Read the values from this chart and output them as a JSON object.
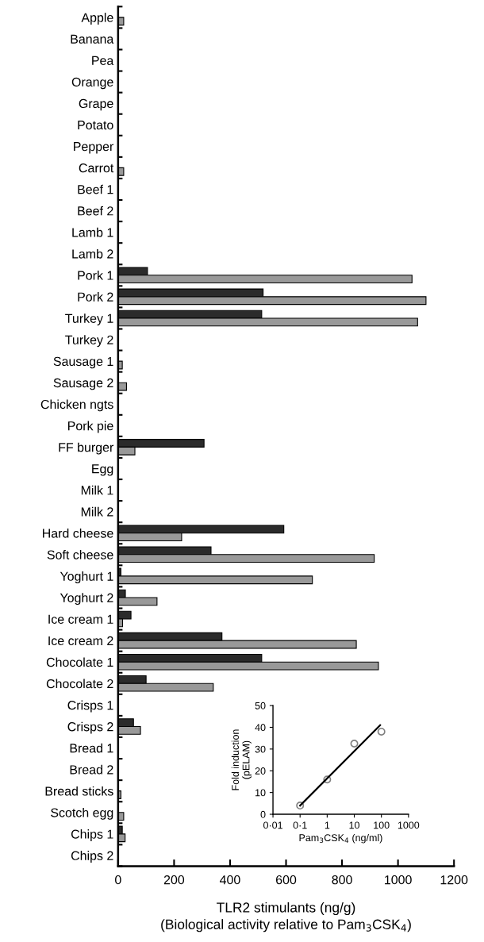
{
  "chart_data": [
    {
      "type": "bar",
      "orientation": "horizontal",
      "xlabel": "TLR2 stimulants (ng/g)\n(Biological activity relative to Pam$_{3}$CSK$_{4}$)",
      "categories": [
        "Apple",
        "Banana",
        "Pea",
        "Orange",
        "Grape",
        "Potato",
        "Pepper",
        "Carrot",
        "Beef 1",
        "Beef 2",
        "Lamb 1",
        "Lamb 2",
        "Pork 1",
        "Pork 2",
        "Turkey 1",
        "Turkey 2",
        "Sausage 1",
        "Sausage 2",
        "Chicken ngts",
        "Pork pie",
        "FF burger",
        "Egg",
        "Milk 1",
        "Milk 2",
        "Hard cheese",
        "Soft cheese",
        "Yoghurt 1",
        "Yoghurt 2",
        "Ice cream 1",
        "Ice cream 2",
        "Chocolate 1",
        "Chocolate 2",
        "Crisps 1",
        "Crisps 2",
        "Bread 1",
        "Bread 2",
        "Bread sticks",
        "Scotch egg",
        "Chips 1",
        "Chips 2"
      ],
      "series": [
        {
          "color": "#2b2b2b",
          "values": [
            null,
            null,
            null,
            null,
            null,
            null,
            null,
            null,
            null,
            null,
            null,
            null,
            105,
            518,
            513,
            null,
            null,
            null,
            null,
            null,
            307,
            null,
            null,
            null,
            592,
            332,
            10,
            26,
            46,
            371,
            513,
            100,
            null,
            55,
            null,
            null,
            null,
            null,
            15,
            null
          ]
        },
        {
          "color": "#999999",
          "values": [
            20,
            null,
            null,
            null,
            null,
            null,
            null,
            20,
            null,
            null,
            null,
            null,
            1050,
            1100,
            1070,
            null,
            15,
            30,
            null,
            null,
            60,
            null,
            null,
            null,
            227,
            915,
            694,
            139,
            16,
            851,
            930,
            340,
            null,
            80,
            null,
            null,
            10,
            20,
            25,
            null
          ]
        }
      ],
      "xlim": [
        0,
        1200
      ],
      "xticks": [
        0,
        200,
        400,
        600,
        800,
        1000,
        1200
      ]
    },
    {
      "type": "scatter",
      "xlabel": "Pam$_{3}$CSK$_{4}$ (ng/ml)",
      "ylabel": "Fold induction\n(pELAM)",
      "log": "x",
      "series": [
        {
          "type": "scatter",
          "marker": "circle",
          "color": "#808080",
          "x": [
            0.1,
            1,
            10,
            100
          ],
          "values": [
            4,
            16,
            32.5,
            38
          ]
        },
        {
          "type": "line",
          "color": "#000000",
          "x": [
            0.1,
            90
          ],
          "values": [
            4,
            41
          ]
        }
      ],
      "xlim": [
        0.01,
        1000
      ],
      "xticks": [
        {
          "value": 0.01,
          "label": "0·01"
        },
        {
          "value": 0.1,
          "label": "0·1"
        },
        1,
        10,
        100,
        1000
      ],
      "ylim": [
        0,
        50
      ],
      "yticks": [
        0,
        10,
        20,
        30,
        40,
        50
      ]
    }
  ]
}
